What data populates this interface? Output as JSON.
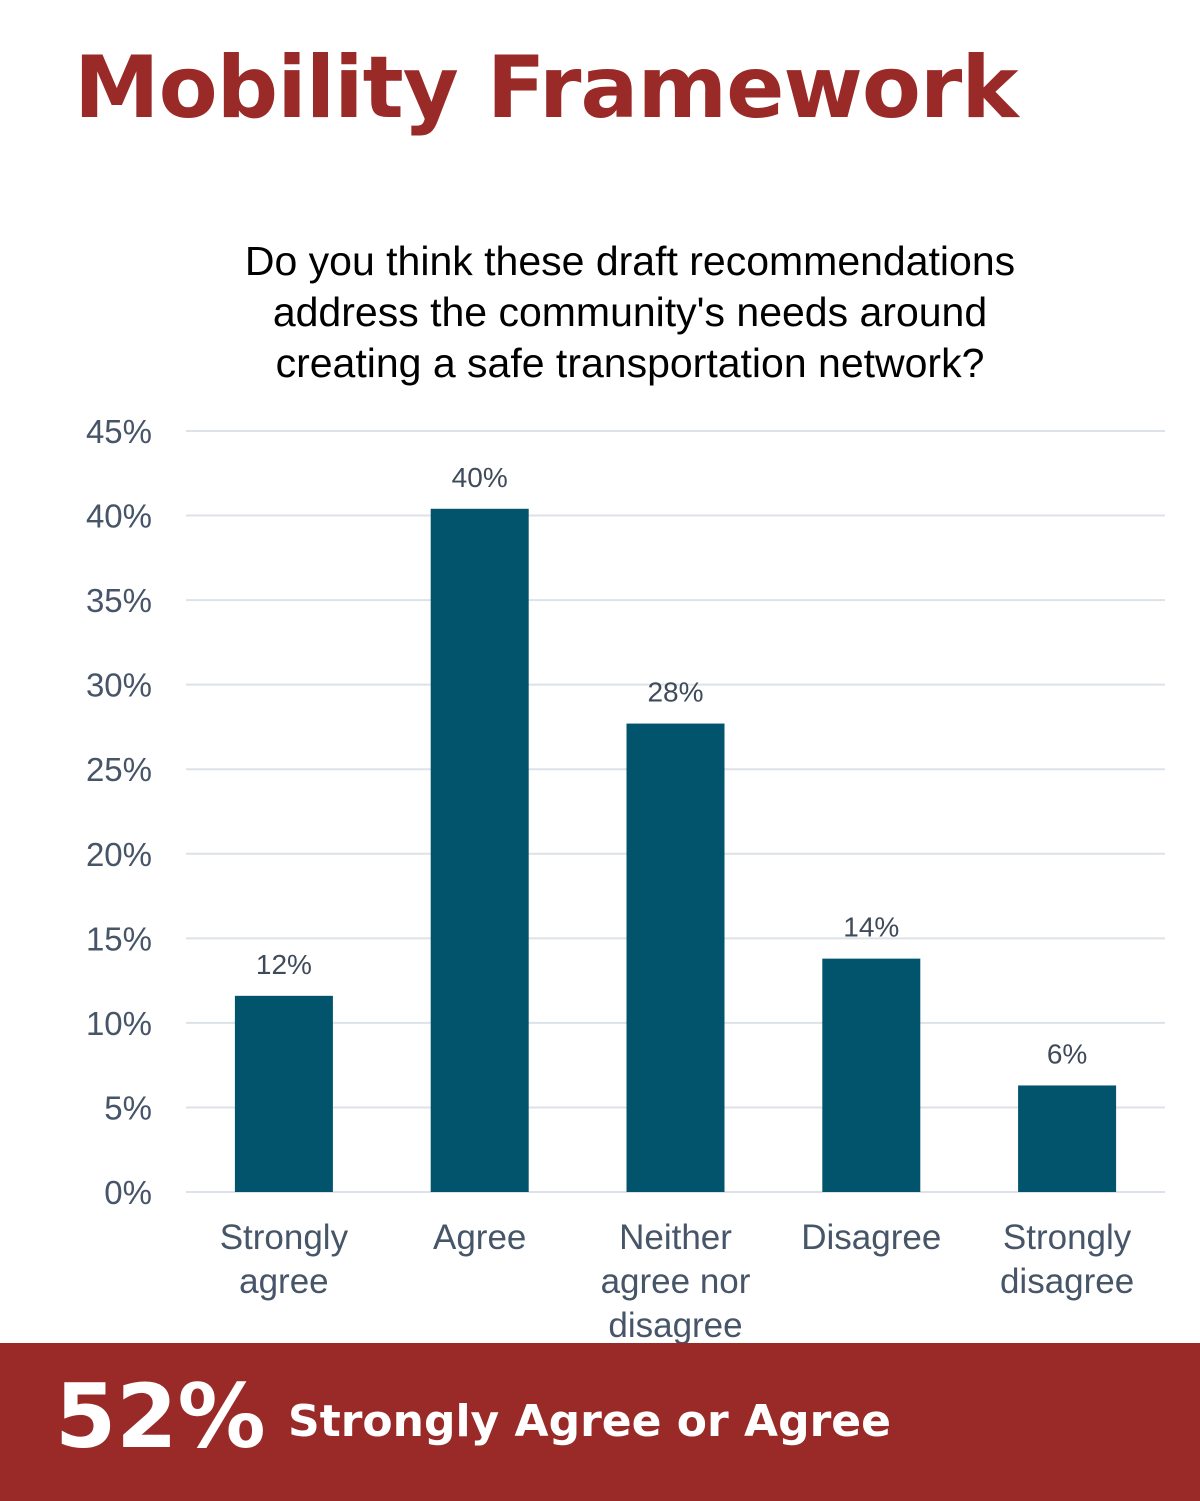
{
  "header": {
    "title": "Mobility Framework"
  },
  "chart_data": {
    "type": "bar",
    "title": "Do you think these draft recommendations address the community's needs around creating a safe transportation network?",
    "title_lines": [
      "Do you think these draft recommendations",
      "address the community's needs around",
      "creating a safe transportation network?"
    ],
    "categories": [
      [
        "Strongly",
        "agree"
      ],
      [
        "Agree"
      ],
      [
        "Neither",
        "agree nor",
        "disagree"
      ],
      [
        "Disagree"
      ],
      [
        "Strongly",
        "disagree"
      ]
    ],
    "values": [
      11.6,
      40.4,
      27.7,
      13.8,
      6.3
    ],
    "data_labels": [
      "12%",
      "40%",
      "28%",
      "14%",
      "6%"
    ],
    "ylim": [
      0,
      45
    ],
    "yticks": [
      0,
      5,
      10,
      15,
      20,
      25,
      30,
      35,
      40,
      45
    ],
    "ytick_labels": [
      "0%",
      "5%",
      "10%",
      "15%",
      "20%",
      "25%",
      "30%",
      "35%",
      "40%",
      "45%"
    ],
    "xlabel": "",
    "ylabel": "",
    "grid": true,
    "colors": {
      "bar": "#02546c",
      "grid": "#dde2e8",
      "tick_text": "#475569",
      "data_label": "#3f4b5b"
    }
  },
  "summary": {
    "value": "52%",
    "label": "Strongly Agree or Agree",
    "background": "#992a28"
  }
}
